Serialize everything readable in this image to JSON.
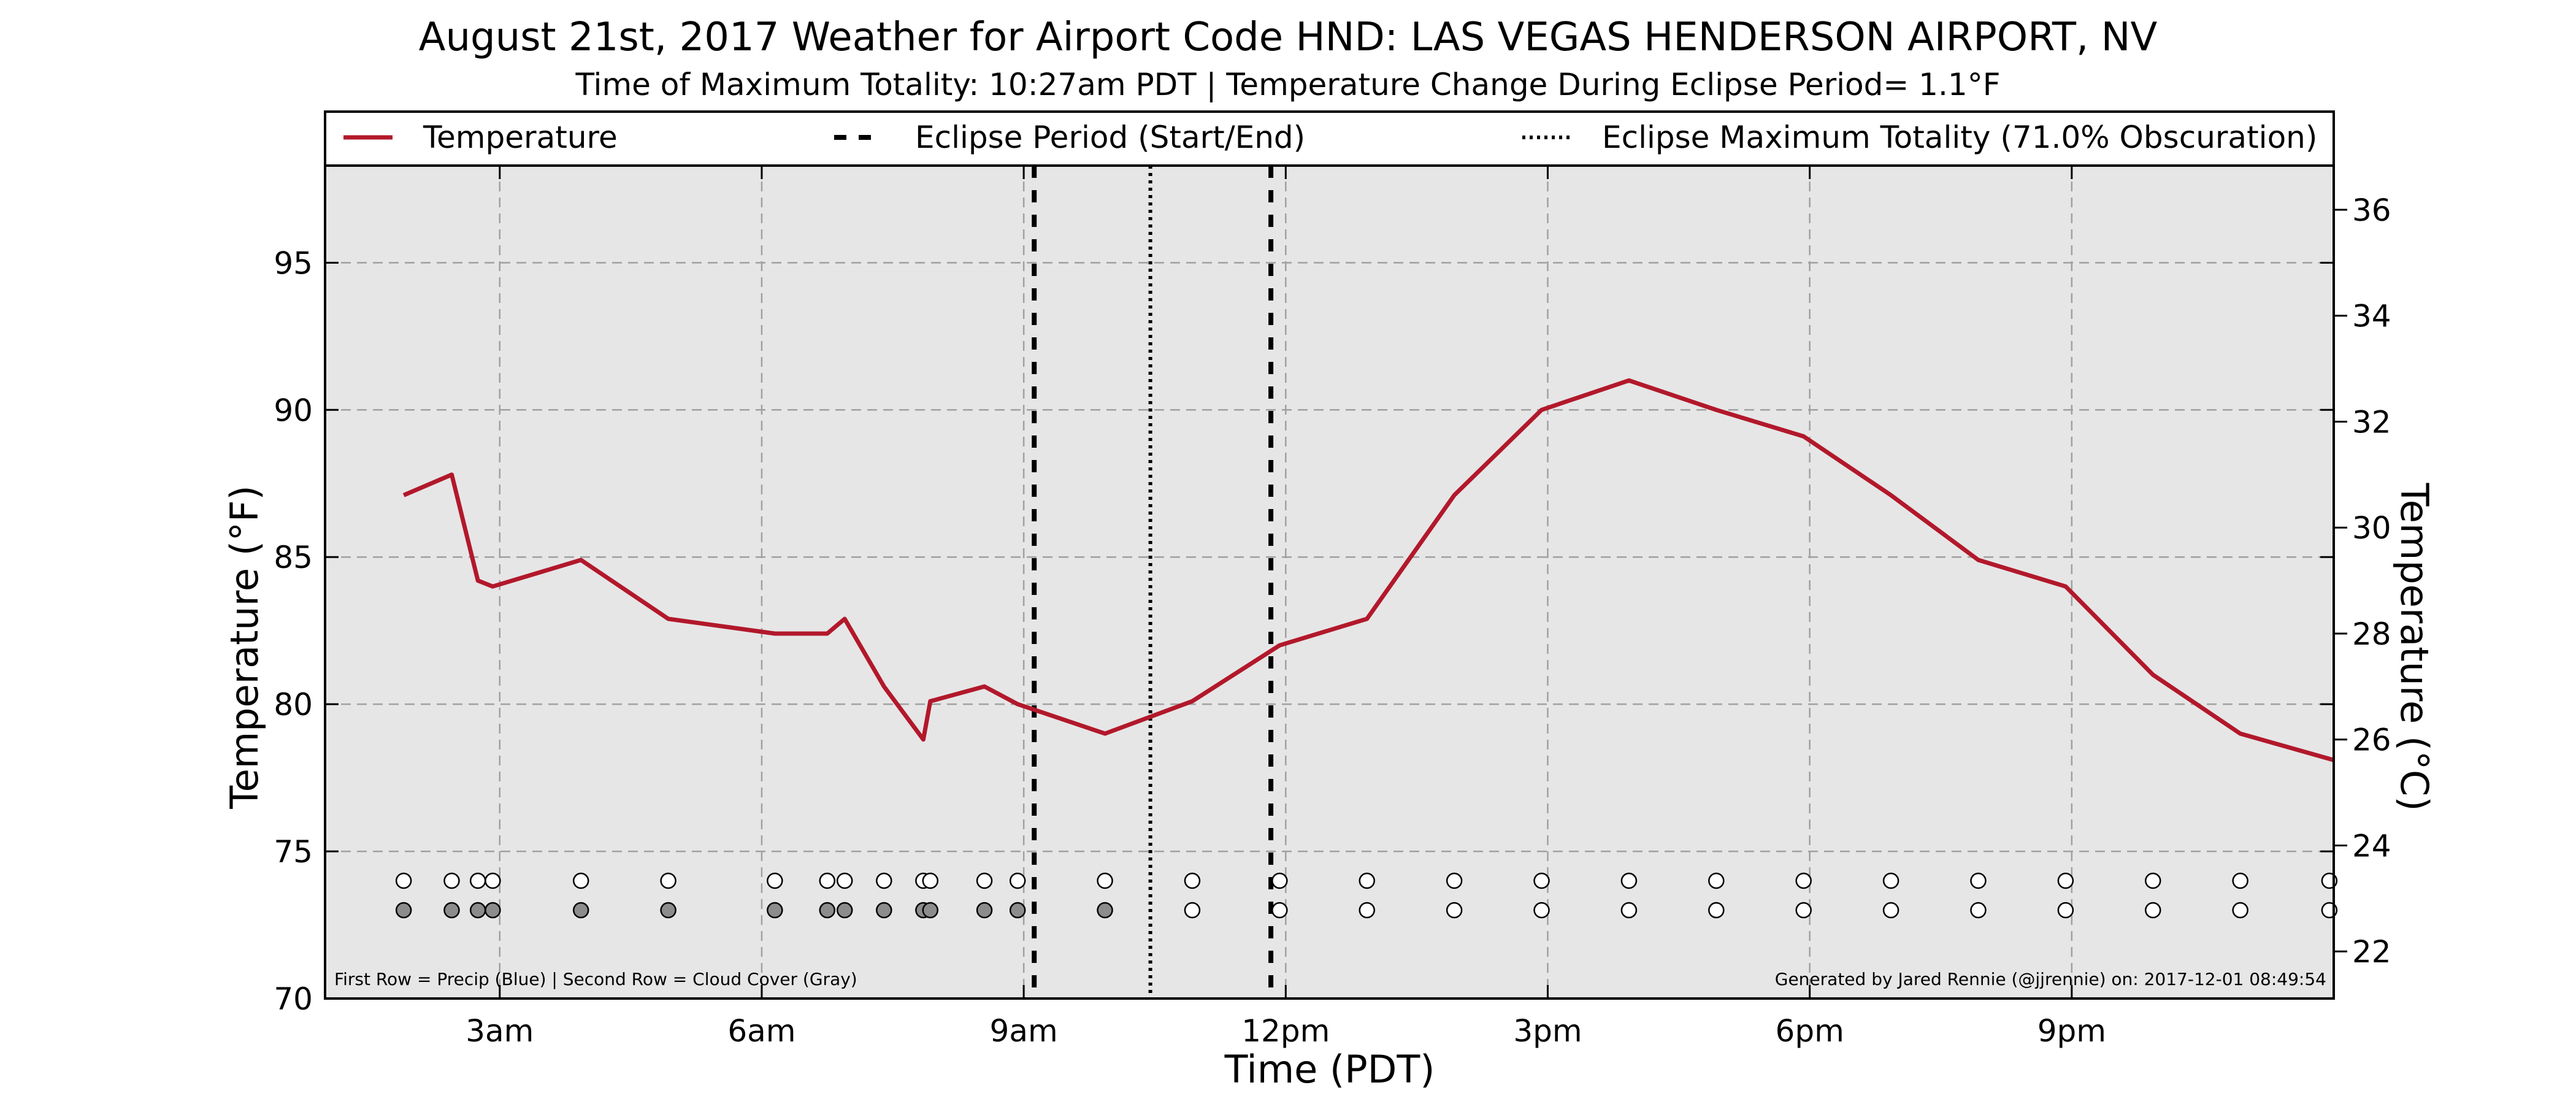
{
  "chart_data": {
    "type": "line",
    "title": "August 21st, 2017 Weather for Airport Code HND: LAS VEGAS HENDERSON AIRPORT, NV",
    "subtitle": "Time of Maximum Totality: 10:27am PDT | Temperature Change During Eclipse Period= 1.1°F",
    "xlabel": "Time (PDT)",
    "ylabel": "Temperature (°F)",
    "y2label": "Temperature (°C)",
    "xlim": [
      1.0,
      24.0
    ],
    "ylim": [
      70,
      98.3
    ],
    "x_ticks": [
      {
        "value": 3,
        "label": "3am"
      },
      {
        "value": 6,
        "label": "6am"
      },
      {
        "value": 9,
        "label": "9am"
      },
      {
        "value": 12,
        "label": "12pm"
      },
      {
        "value": 15,
        "label": "3pm"
      },
      {
        "value": 18,
        "label": "6pm"
      },
      {
        "value": 21,
        "label": "9pm"
      }
    ],
    "y_ticks": [
      70,
      75,
      80,
      85,
      90,
      95
    ],
    "y2_ticks": [
      22,
      24,
      26,
      28,
      30,
      32,
      34,
      36
    ],
    "grid": true,
    "legend_position": "top",
    "legend": [
      {
        "label": "Temperature",
        "style": "solid"
      },
      {
        "label": "Eclipse Period (Start/End)",
        "style": "dashed"
      },
      {
        "label": "Eclipse Maximum Totality (71.0% Obscuration)",
        "style": "dotted"
      }
    ],
    "series": [
      {
        "name": "Temperature",
        "color": "#b2182b",
        "x": [
          1.9,
          2.45,
          2.75,
          2.92,
          3.93,
          4.93,
          6.15,
          6.75,
          6.95,
          7.4,
          7.85,
          7.93,
          8.55,
          8.93,
          9.93,
          10.93,
          11.93,
          12.93,
          13.93,
          14.93,
          15.93,
          16.93,
          17.93,
          18.93,
          19.93,
          20.93,
          21.93,
          22.93,
          24.0
        ],
        "values": [
          87.1,
          87.8,
          84.2,
          84.0,
          84.9,
          82.9,
          82.4,
          82.4,
          82.9,
          80.6,
          78.8,
          80.1,
          80.6,
          80.0,
          79.0,
          80.1,
          82.0,
          82.9,
          87.1,
          90.0,
          91.0,
          90.0,
          89.1,
          87.1,
          84.9,
          84.0,
          81.0,
          79.0,
          78.1
        ]
      }
    ],
    "eclipse_start": 9.12,
    "eclipse_end": 11.83,
    "eclipse_max": 10.45,
    "obs_times": [
      1.9,
      2.45,
      2.75,
      2.92,
      3.93,
      4.93,
      6.15,
      6.75,
      6.95,
      7.4,
      7.85,
      7.93,
      8.55,
      8.93,
      9.93,
      10.93,
      11.93,
      12.93,
      13.93,
      14.93,
      15.93,
      16.93,
      17.93,
      18.93,
      19.93,
      20.93,
      21.93,
      22.93,
      23.95
    ],
    "precip_row_value": 74,
    "cloud_row_value": 73,
    "cloud_cover_gray_count": 15,
    "footnote_left": "First Row = Precip (Blue) | Second Row = Cloud Cover (Gray)",
    "footnote_right": "Generated by Jared Rennie (@jjrennie) on: 2017-12-01 08:49:54"
  },
  "colors": {
    "plot_bg": "#e6e6e6",
    "temperature_line": "#b2182b",
    "grid": "#a0a0a0",
    "cloud_gray": "#8c8c8c"
  }
}
